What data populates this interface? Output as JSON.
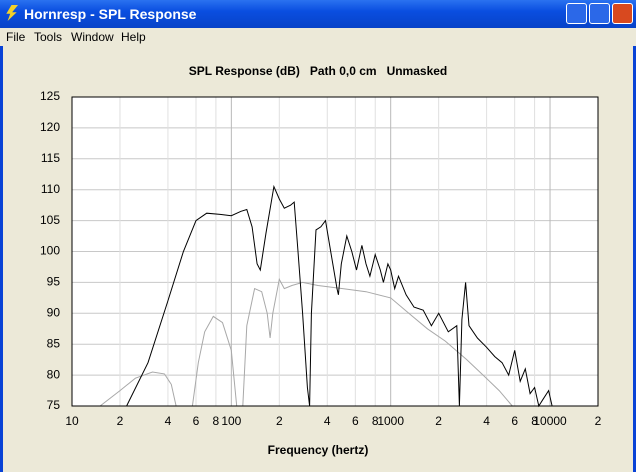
{
  "window": {
    "title": "Hornresp - SPL Response"
  },
  "menu": [
    "File",
    "Tools",
    "Window",
    "Help"
  ],
  "chart_data": {
    "type": "line",
    "title": "SPL Response (dB)   Path 0,0 cm   Unmasked",
    "x_label": "Frequency (hertz)",
    "log_x": true,
    "grid": true,
    "xlim": [
      10,
      20000
    ],
    "ylim": [
      75,
      125
    ],
    "yticks": [
      75,
      80,
      85,
      90,
      95,
      100,
      105,
      110,
      115,
      120,
      125
    ],
    "xticks": [
      10,
      {
        "value": 20,
        "label": "2"
      },
      {
        "value": 40,
        "label": "4"
      },
      {
        "value": 60,
        "label": "6"
      },
      {
        "value": 80,
        "label": "8"
      },
      100,
      {
        "value": 200,
        "label": "2"
      },
      {
        "value": 400,
        "label": "4"
      },
      {
        "value": 600,
        "label": "6"
      },
      {
        "value": 800,
        "label": "8"
      },
      1000,
      {
        "value": 2000,
        "label": "2"
      },
      {
        "value": 4000,
        "label": "4"
      },
      {
        "value": 6000,
        "label": "6"
      },
      {
        "value": 8000,
        "label": "8"
      },
      10000,
      {
        "value": 20000,
        "label": "2"
      }
    ],
    "series": [
      {
        "color": "#000000",
        "x": [
          22,
          30,
          40,
          50,
          60,
          70,
          85,
          100,
          115,
          125,
          135,
          145,
          152,
          165,
          185,
          200,
          215,
          235,
          248,
          262,
          280,
          300,
          310,
          318,
          340,
          365,
          390,
          420,
          460,
          470,
          490,
          530,
          570,
          610,
          660,
          700,
          740,
          800,
          860,
          900,
          960,
          1000,
          1060,
          1120,
          1250,
          1400,
          1600,
          1800,
          2000,
          2300,
          2600,
          2700,
          2800,
          2950,
          3100,
          3500,
          4000,
          4500,
          5000,
          5500,
          6000,
          6500,
          7000,
          7500,
          8000,
          8500,
          9000,
          9800,
          10300
        ],
        "values": [
          75,
          82,
          92,
          100,
          105,
          106.2,
          106,
          105.8,
          106.5,
          106.8,
          104,
          98,
          97,
          103,
          110.5,
          108.5,
          107,
          107.5,
          108,
          100,
          90,
          78,
          75,
          90,
          103.5,
          104,
          105,
          100,
          94,
          93,
          98,
          102.5,
          100,
          97,
          101,
          98,
          96,
          99.5,
          97,
          95,
          98,
          97,
          94,
          96,
          93,
          91,
          90.5,
          88,
          90,
          87,
          88,
          75,
          89,
          95,
          88,
          86,
          84.5,
          83,
          82,
          80,
          84,
          79,
          81,
          77,
          78,
          75,
          76,
          77.5,
          75
        ]
      },
      {
        "color": "#a8a8a8",
        "x": [
          15,
          20,
          25,
          32,
          38,
          42,
          45,
          null,
          57,
          62,
          68,
          77,
          88,
          100,
          108,
          null,
          118,
          125,
          140,
          155,
          168,
          175,
          182,
          200,
          215,
          240,
          280,
          350,
          500,
          700,
          1000,
          1300,
          1700,
          2200,
          3000,
          3800,
          4800,
          5800
        ],
        "values": [
          75,
          77.5,
          79.5,
          80.5,
          80.2,
          78.5,
          75,
          null,
          75,
          82,
          87,
          89.5,
          88.5,
          84,
          75,
          null,
          75,
          88,
          94,
          93.5,
          90,
          86,
          90,
          95.5,
          94,
          94.5,
          95,
          94.5,
          94,
          93.5,
          92.5,
          90,
          87.5,
          85.5,
          82.5,
          80,
          77.5,
          75
        ]
      }
    ]
  }
}
